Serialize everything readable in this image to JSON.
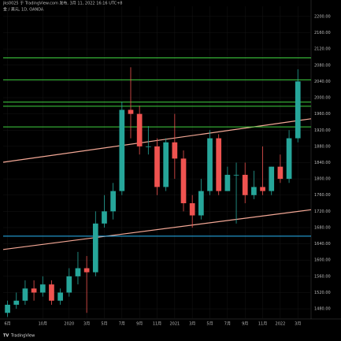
{
  "chart_data": {
    "type": "candlestick",
    "title": "jks0025 于 TradingView.com 发布, 3月 11, 2022 16:16 UTC+8",
    "subtitle": "金 / 美元, 1D, OANDA",
    "footer": "TradingView",
    "x": [
      0,
      1,
      2,
      3,
      4,
      5,
      6,
      7,
      8,
      9,
      10,
      11,
      12,
      13,
      14,
      15,
      16,
      17,
      18,
      19,
      20,
      21,
      22,
      23,
      24,
      25,
      26,
      27,
      28,
      29,
      30,
      31,
      32,
      33
    ],
    "open": [
      1470,
      1490,
      1500,
      1530,
      1520,
      1540,
      1500,
      1520,
      1560,
      1580,
      1570,
      1690,
      1720,
      1770,
      1970,
      1960,
      1880,
      1880,
      1780,
      1890,
      1850,
      1740,
      1710,
      1770,
      1900,
      1770,
      1810,
      1810,
      1760,
      1780,
      1770,
      1830,
      1800,
      1900
    ],
    "high": [
      1500,
      1520,
      1550,
      1550,
      1560,
      1550,
      1530,
      1580,
      1620,
      1610,
      1720,
      1760,
      1790,
      1990,
      2075,
      1980,
      1930,
      1900,
      1900,
      1960,
      1870,
      1760,
      1800,
      1920,
      1910,
      1830,
      1840,
      1840,
      1820,
      1880,
      1830,
      1860,
      1920,
      2070
    ],
    "low": [
      1460,
      1480,
      1490,
      1500,
      1510,
      1490,
      1490,
      1510,
      1540,
      1470,
      1560,
      1680,
      1700,
      1760,
      1900,
      1860,
      1860,
      1760,
      1770,
      1800,
      1720,
      1680,
      1700,
      1760,
      1760,
      1770,
      1690,
      1740,
      1750,
      1760,
      1760,
      1790,
      1790,
      1890
    ],
    "close": [
      1490,
      1500,
      1530,
      1520,
      1540,
      1500,
      1520,
      1560,
      1580,
      1570,
      1690,
      1720,
      1770,
      1970,
      1960,
      1880,
      1880,
      1780,
      1890,
      1850,
      1740,
      1710,
      1770,
      1900,
      1770,
      1810,
      1810,
      1760,
      1780,
      1770,
      1830,
      1800,
      1900,
      2040
    ],
    "up_color": "#26a69a",
    "down_color": "#ef5350",
    "xlim": [
      -0.5,
      34.5
    ],
    "xticks": [
      {
        "value": 0,
        "label": "6月"
      },
      {
        "value": 4,
        "label": "10月"
      },
      {
        "value": 7,
        "label": "2020"
      },
      {
        "value": 9,
        "label": "3月"
      },
      {
        "value": 11,
        "label": "5月"
      },
      {
        "value": 13,
        "label": "7月"
      },
      {
        "value": 15,
        "label": "9月"
      },
      {
        "value": 17,
        "label": "11月"
      },
      {
        "value": 19,
        "label": "2021"
      },
      {
        "value": 21,
        "label": "3月"
      },
      {
        "value": 23,
        "label": "5月"
      },
      {
        "value": 25,
        "label": "7月"
      },
      {
        "value": 27,
        "label": "9月"
      },
      {
        "value": 29,
        "label": "11月"
      },
      {
        "value": 31,
        "label": "2022"
      },
      {
        "value": 33,
        "label": "3月"
      }
    ],
    "ylim": [
      1455,
      2225
    ],
    "yticks": [
      {
        "value": 1480,
        "label": "1480.00"
      },
      {
        "value": 1520,
        "label": "1520.00"
      },
      {
        "value": 1560,
        "label": "1560.00"
      },
      {
        "value": 1600,
        "label": "1600.00"
      },
      {
        "value": 1640,
        "label": "1640.00"
      },
      {
        "value": 1680,
        "label": "1680.00"
      },
      {
        "value": 1720,
        "label": "1720.00"
      },
      {
        "value": 1760,
        "label": "1760.00"
      },
      {
        "value": 1800,
        "label": "1800.00"
      },
      {
        "value": 1840,
        "label": "1840.00"
      },
      {
        "value": 1880,
        "label": "1880.00"
      },
      {
        "value": 1920,
        "label": "1920.00"
      },
      {
        "value": 1960,
        "label": "1960.00"
      },
      {
        "value": 2000,
        "label": "2000.00"
      },
      {
        "value": 2040,
        "label": "2040.00"
      },
      {
        "value": 2080,
        "label": "2080.00"
      },
      {
        "value": 2120,
        "label": "2120.00"
      },
      {
        "value": 2160,
        "label": "2160.00"
      },
      {
        "value": 2200,
        "label": "2200.00"
      }
    ],
    "hlines": [
      {
        "value": 2098,
        "color": "#3fd13f"
      },
      {
        "value": 2044,
        "color": "#3fd13f"
      },
      {
        "value": 1989,
        "color": "#3fd13f"
      },
      {
        "value": 1979,
        "color": "#3fd13f"
      },
      {
        "value": 1928,
        "color": "#3fd13f"
      },
      {
        "value": 1659,
        "color": "#29b6f6"
      }
    ],
    "trendlines": [
      {
        "x": [
          -0.5,
          34.5
        ],
        "y": [
          1841,
          1948
        ],
        "color": "#f4a896"
      },
      {
        "x": [
          -0.5,
          34.5
        ],
        "y": [
          1626,
          1724
        ],
        "color": "#f4a896"
      }
    ]
  }
}
